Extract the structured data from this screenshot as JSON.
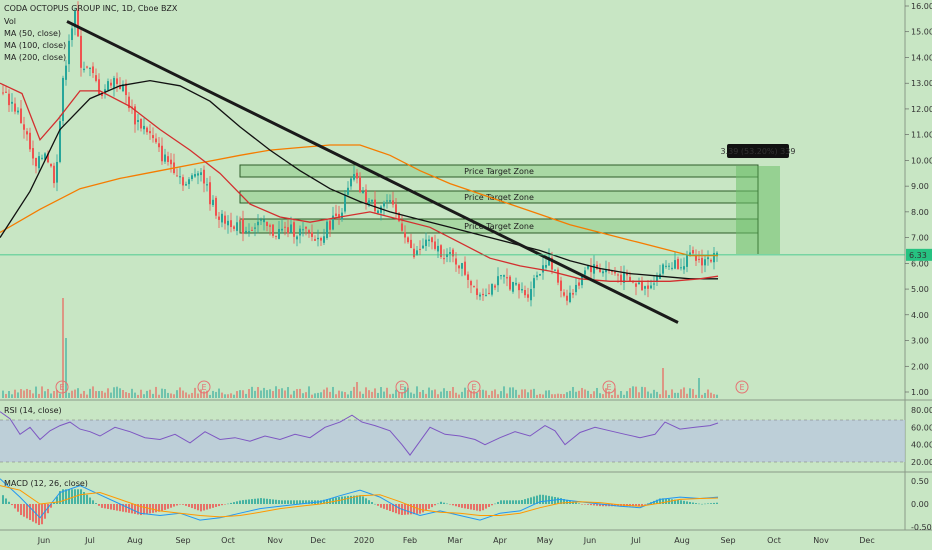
{
  "chart_data": {
    "type": "candlestick",
    "header": {
      "title": "CODA OCTOPUS GROUP INC, 1D, Cboe BZX",
      "legend": [
        "Vol",
        "MA (50, close)",
        "MA (100, close)",
        "MA (200, close)"
      ]
    },
    "price_axis": {
      "ticks": [
        "16.00",
        "15.00",
        "14.00",
        "13.00",
        "12.00",
        "11.00",
        "10.00",
        "9.00",
        "8.00",
        "7.00",
        "6.00",
        "5.00",
        "4.00",
        "3.00",
        "2.00",
        "1.00"
      ],
      "range": [
        0.5,
        16.3
      ],
      "last_price_label": "6.33"
    },
    "rsi": {
      "title": "RSI (14, close)",
      "ticks": [
        "80.00",
        "60.00",
        "40.00",
        "20.00"
      ],
      "band": [
        30,
        70
      ]
    },
    "macd": {
      "title": "MACD (12, 26, close)",
      "ticks": [
        "0.50",
        "0.00",
        "-0.50"
      ]
    },
    "time_axis": {
      "ticks": [
        "Jun",
        "Jul",
        "Aug",
        "Sep",
        "Oct",
        "Nov",
        "Dec",
        "2020",
        "Feb",
        "Mar",
        "Apr",
        "May",
        "Jun",
        "Jul",
        "Aug",
        "Sep",
        "Oct",
        "Nov",
        "Dec"
      ]
    },
    "zones": [
      "Price Target Zone",
      "Price Target Zone",
      "Price Target Zone"
    ],
    "measure_label": "3.39 (53.20%) 339",
    "earnings_marker": "E",
    "price_path": [
      [
        0,
        12.6
      ],
      [
        12,
        12.2
      ],
      [
        24,
        11.2
      ],
      [
        34,
        9.6
      ],
      [
        44,
        10.4
      ],
      [
        54,
        9.2
      ],
      [
        62,
        13.0
      ],
      [
        68,
        14.8
      ],
      [
        74,
        15.6
      ],
      [
        80,
        13.8
      ],
      [
        90,
        13.4
      ],
      [
        100,
        12.6
      ],
      [
        112,
        13.2
      ],
      [
        122,
        12.8
      ],
      [
        134,
        11.6
      ],
      [
        146,
        11.2
      ],
      [
        160,
        10.2
      ],
      [
        172,
        9.8
      ],
      [
        186,
        9.0
      ],
      [
        198,
        9.8
      ],
      [
        210,
        8.4
      ],
      [
        220,
        7.7
      ],
      [
        232,
        7.6
      ],
      [
        244,
        7.3
      ],
      [
        258,
        7.6
      ],
      [
        272,
        7.2
      ],
      [
        288,
        7.3
      ],
      [
        302,
        7.2
      ],
      [
        316,
        6.9
      ],
      [
        328,
        7.5
      ],
      [
        342,
        8.2
      ],
      [
        352,
        9.4
      ],
      [
        362,
        8.6
      ],
      [
        374,
        8.2
      ],
      [
        386,
        8.4
      ],
      [
        396,
        7.8
      ],
      [
        404,
        7.2
      ],
      [
        412,
        6.2
      ],
      [
        424,
        6.8
      ],
      [
        436,
        6.6
      ],
      [
        446,
        6.3
      ],
      [
        458,
        6.0
      ],
      [
        470,
        5.3
      ],
      [
        480,
        4.8
      ],
      [
        492,
        5.2
      ],
      [
        504,
        5.4
      ],
      [
        516,
        5.0
      ],
      [
        526,
        4.8
      ],
      [
        536,
        5.6
      ],
      [
        546,
        6.2
      ],
      [
        556,
        5.4
      ],
      [
        564,
        4.7
      ],
      [
        574,
        4.9
      ],
      [
        584,
        5.9
      ],
      [
        596,
        5.8
      ],
      [
        608,
        5.7
      ],
      [
        620,
        5.5
      ],
      [
        632,
        5.2
      ],
      [
        644,
        5.1
      ],
      [
        656,
        5.5
      ],
      [
        664,
        5.9
      ],
      [
        676,
        6.0
      ],
      [
        688,
        6.2
      ],
      [
        700,
        6.1
      ],
      [
        712,
        6.2
      ],
      [
        719,
        6.33
      ]
    ],
    "ma50": [
      [
        0,
        13.0
      ],
      [
        22,
        12.6
      ],
      [
        40,
        10.8
      ],
      [
        58,
        11.6
      ],
      [
        80,
        12.7
      ],
      [
        100,
        12.7
      ],
      [
        130,
        12.1
      ],
      [
        160,
        11.2
      ],
      [
        190,
        10.4
      ],
      [
        220,
        9.5
      ],
      [
        250,
        8.3
      ],
      [
        280,
        7.8
      ],
      [
        310,
        7.6
      ],
      [
        340,
        7.8
      ],
      [
        370,
        8.0
      ],
      [
        400,
        7.7
      ],
      [
        430,
        7.4
      ],
      [
        460,
        6.8
      ],
      [
        490,
        6.2
      ],
      [
        520,
        5.9
      ],
      [
        550,
        5.7
      ],
      [
        580,
        5.4
      ],
      [
        610,
        5.3
      ],
      [
        640,
        5.3
      ],
      [
        670,
        5.3
      ],
      [
        700,
        5.4
      ],
      [
        718,
        5.5
      ]
    ],
    "ma100": [
      [
        0,
        7.0
      ],
      [
        30,
        8.8
      ],
      [
        60,
        11.2
      ],
      [
        90,
        12.4
      ],
      [
        120,
        12.9
      ],
      [
        150,
        13.1
      ],
      [
        180,
        12.9
      ],
      [
        210,
        12.3
      ],
      [
        240,
        11.3
      ],
      [
        270,
        10.4
      ],
      [
        300,
        9.6
      ],
      [
        330,
        8.9
      ],
      [
        360,
        8.4
      ],
      [
        390,
        8.0
      ],
      [
        420,
        7.7
      ],
      [
        450,
        7.4
      ],
      [
        480,
        7.1
      ],
      [
        510,
        6.8
      ],
      [
        540,
        6.5
      ],
      [
        570,
        6.1
      ],
      [
        600,
        5.8
      ],
      [
        630,
        5.6
      ],
      [
        660,
        5.5
      ],
      [
        690,
        5.4
      ],
      [
        718,
        5.4
      ]
    ],
    "ma200": [
      [
        0,
        7.2
      ],
      [
        40,
        8.1
      ],
      [
        80,
        8.9
      ],
      [
        120,
        9.3
      ],
      [
        160,
        9.6
      ],
      [
        200,
        9.9
      ],
      [
        240,
        10.2
      ],
      [
        270,
        10.4
      ],
      [
        300,
        10.5
      ],
      [
        330,
        10.6
      ],
      [
        360,
        10.6
      ],
      [
        390,
        10.2
      ],
      [
        420,
        9.6
      ],
      [
        450,
        9.1
      ],
      [
        480,
        8.7
      ],
      [
        510,
        8.3
      ],
      [
        540,
        7.9
      ],
      [
        570,
        7.5
      ],
      [
        600,
        7.2
      ],
      [
        630,
        6.9
      ],
      [
        660,
        6.6
      ],
      [
        690,
        6.3
      ],
      [
        718,
        6.3
      ]
    ],
    "trendline": [
      [
        67,
        15.4
      ],
      [
        678,
        3.7
      ]
    ],
    "rsi_path": [
      [
        0,
        78
      ],
      [
        10,
        70
      ],
      [
        20,
        52
      ],
      [
        30,
        60
      ],
      [
        40,
        46
      ],
      [
        50,
        56
      ],
      [
        60,
        62
      ],
      [
        70,
        66
      ],
      [
        80,
        58
      ],
      [
        90,
        55
      ],
      [
        100,
        50
      ],
      [
        115,
        60
      ],
      [
        130,
        55
      ],
      [
        145,
        48
      ],
      [
        160,
        46
      ],
      [
        175,
        52
      ],
      [
        190,
        42
      ],
      [
        205,
        55
      ],
      [
        220,
        46
      ],
      [
        235,
        48
      ],
      [
        250,
        44
      ],
      [
        265,
        50
      ],
      [
        280,
        46
      ],
      [
        295,
        52
      ],
      [
        310,
        48
      ],
      [
        325,
        60
      ],
      [
        340,
        66
      ],
      [
        352,
        74
      ],
      [
        362,
        66
      ],
      [
        375,
        62
      ],
      [
        390,
        56
      ],
      [
        402,
        40
      ],
      [
        410,
        28
      ],
      [
        420,
        44
      ],
      [
        430,
        60
      ],
      [
        445,
        52
      ],
      [
        460,
        50
      ],
      [
        475,
        46
      ],
      [
        485,
        40
      ],
      [
        500,
        48
      ],
      [
        515,
        55
      ],
      [
        530,
        50
      ],
      [
        545,
        62
      ],
      [
        555,
        56
      ],
      [
        565,
        40
      ],
      [
        580,
        54
      ],
      [
        595,
        60
      ],
      [
        610,
        56
      ],
      [
        625,
        52
      ],
      [
        640,
        48
      ],
      [
        655,
        52
      ],
      [
        665,
        66
      ],
      [
        680,
        58
      ],
      [
        695,
        60
      ],
      [
        710,
        62
      ],
      [
        718,
        65
      ]
    ],
    "macd_line": [
      [
        0,
        0.55
      ],
      [
        20,
        0.15
      ],
      [
        40,
        -0.3
      ],
      [
        60,
        0.25
      ],
      [
        80,
        0.4
      ],
      [
        100,
        0.2
      ],
      [
        120,
        0.0
      ],
      [
        140,
        -0.2
      ],
      [
        160,
        -0.25
      ],
      [
        180,
        -0.2
      ],
      [
        200,
        -0.35
      ],
      [
        220,
        -0.3
      ],
      [
        240,
        -0.2
      ],
      [
        260,
        -0.1
      ],
      [
        280,
        -0.05
      ],
      [
        300,
        0.0
      ],
      [
        320,
        0.05
      ],
      [
        340,
        0.18
      ],
      [
        360,
        0.3
      ],
      [
        380,
        0.15
      ],
      [
        400,
        -0.1
      ],
      [
        420,
        -0.25
      ],
      [
        440,
        -0.15
      ],
      [
        460,
        -0.25
      ],
      [
        480,
        -0.35
      ],
      [
        500,
        -0.2
      ],
      [
        520,
        -0.15
      ],
      [
        540,
        0.05
      ],
      [
        560,
        0.1
      ],
      [
        580,
        0.05
      ],
      [
        600,
        0.0
      ],
      [
        620,
        -0.05
      ],
      [
        640,
        -0.08
      ],
      [
        660,
        0.1
      ],
      [
        680,
        0.15
      ],
      [
        700,
        0.12
      ],
      [
        718,
        0.15
      ]
    ],
    "signal_line": [
      [
        0,
        0.4
      ],
      [
        20,
        0.3
      ],
      [
        40,
        0.0
      ],
      [
        60,
        0.05
      ],
      [
        80,
        0.2
      ],
      [
        100,
        0.25
      ],
      [
        120,
        0.1
      ],
      [
        140,
        -0.05
      ],
      [
        160,
        -0.15
      ],
      [
        180,
        -0.2
      ],
      [
        200,
        -0.25
      ],
      [
        220,
        -0.28
      ],
      [
        240,
        -0.25
      ],
      [
        260,
        -0.18
      ],
      [
        280,
        -0.1
      ],
      [
        300,
        -0.05
      ],
      [
        320,
        0.0
      ],
      [
        340,
        0.08
      ],
      [
        360,
        0.18
      ],
      [
        380,
        0.2
      ],
      [
        400,
        0.05
      ],
      [
        420,
        -0.12
      ],
      [
        440,
        -0.18
      ],
      [
        460,
        -0.2
      ],
      [
        480,
        -0.25
      ],
      [
        500,
        -0.25
      ],
      [
        520,
        -0.2
      ],
      [
        540,
        -0.08
      ],
      [
        560,
        0.02
      ],
      [
        580,
        0.05
      ],
      [
        600,
        0.03
      ],
      [
        620,
        -0.02
      ],
      [
        640,
        -0.05
      ],
      [
        660,
        0.02
      ],
      [
        680,
        0.1
      ],
      [
        700,
        0.12
      ],
      [
        718,
        0.13
      ]
    ],
    "colors": {
      "background": "#c8e6c4",
      "bull": "#26a69a",
      "bear": "#ef5350",
      "ma50": "#d32f2f",
      "ma100": "#111111",
      "ma200": "#f57c00",
      "rsi": "#7e57c2",
      "macd": "#2196f3",
      "signal": "#ff9800",
      "zone_fill": "#8fcc8a",
      "zone_stroke": "#2e5d2a",
      "last_price": "#26c281"
    }
  }
}
